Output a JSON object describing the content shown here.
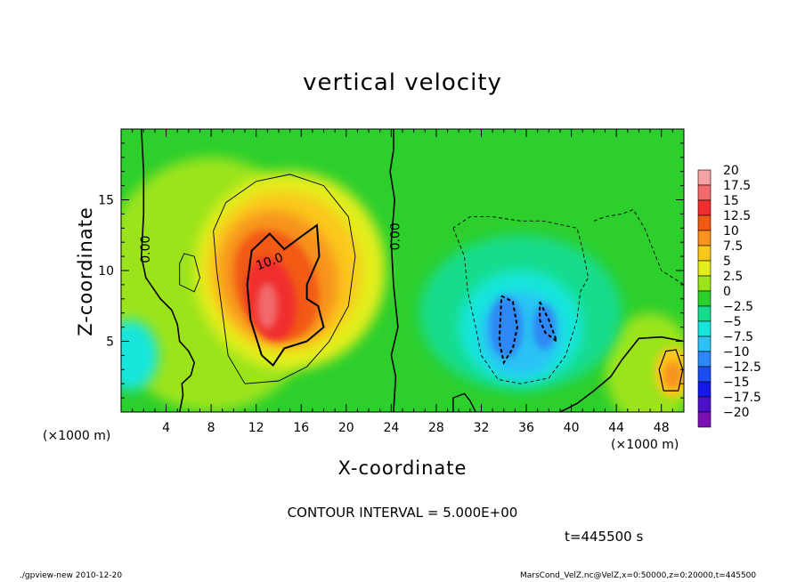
{
  "chart_data": {
    "type": "heatmap",
    "title": "vertical velocity",
    "xlabel": "X-coordinate",
    "ylabel": "Z-coordinate",
    "x_unit_note": "(×1000 m)",
    "x_ticks": [
      4,
      8,
      12,
      16,
      20,
      24,
      28,
      32,
      36,
      40,
      44,
      48
    ],
    "y_ticks": [
      5,
      10,
      15
    ],
    "xlim": [
      0,
      50
    ],
    "ylim": [
      0,
      20
    ],
    "colorbar": {
      "labels": [
        "20",
        "17.5",
        "15",
        "12.5",
        "10",
        "7.5",
        "5",
        "2.5",
        "0",
        "−2.5",
        "−5",
        "−7.5",
        "−10",
        "−12.5",
        "−15",
        "−17.5",
        "−20"
      ],
      "colors": [
        "#f7a2a2",
        "#f26b6b",
        "#f02e2e",
        "#f25a14",
        "#f7931e",
        "#fbc81a",
        "#e3ee1c",
        "#9be41c",
        "#2dcf2d",
        "#14dc8c",
        "#17e6dc",
        "#2cc2f5",
        "#2d87f5",
        "#1b4ef0",
        "#1418e6",
        "#4c10c8",
        "#7a0fb4"
      ]
    },
    "contour_interval_text": "CONTOUR INTERVAL = 5.000E+00",
    "contour_labels": [
      "0.00",
      "0.00",
      "10.0"
    ],
    "features": [
      {
        "kind": "updraft",
        "x": 13.5,
        "z": 7.5,
        "value": 15
      },
      {
        "kind": "downdraft",
        "x": 35,
        "z": 6,
        "value": -10
      },
      {
        "kind": "updraft",
        "x": 49,
        "z": 2.5,
        "value": 7.5
      }
    ]
  },
  "annotations": {
    "time": "t=445500 s",
    "footer_left": "./gpview-new   2010-12-20",
    "footer_right": "MarsCond_VelZ.nc@VelZ,x=0:50000,z=0:20000,t=445500"
  }
}
